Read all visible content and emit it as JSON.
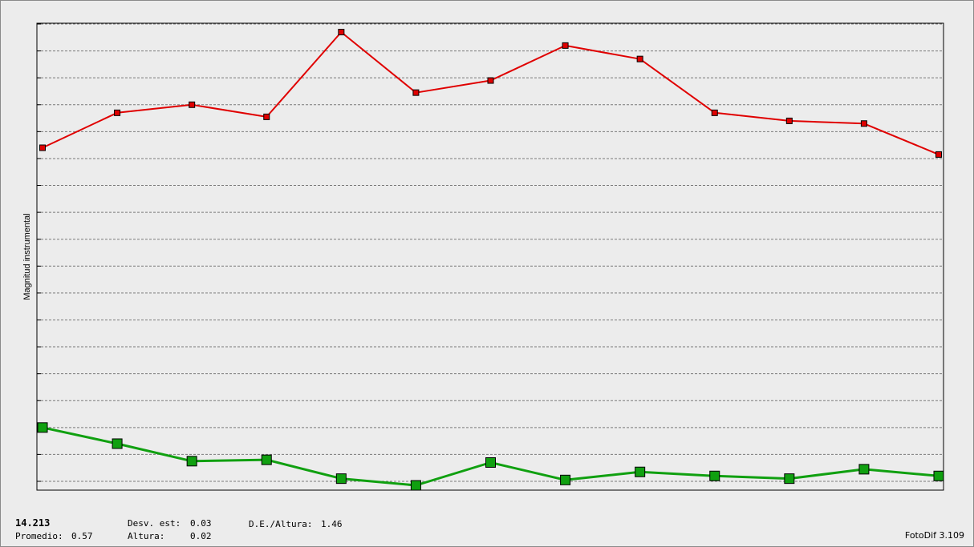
{
  "chart_data": {
    "type": "line",
    "ylabel": "Magnitud instrumental",
    "xlabel": "",
    "title": "",
    "grid": true,
    "x": [
      1,
      2,
      3,
      4,
      5,
      6,
      7,
      8,
      9,
      10,
      11,
      12,
      13
    ],
    "ylim": [
      0,
      17
    ],
    "series": [
      {
        "color": "#e00000",
        "marker": "small-square",
        "values": [
          12.4,
          13.7,
          14.0,
          13.55,
          16.7,
          14.45,
          14.9,
          16.2,
          15.7,
          13.7,
          13.4,
          13.3,
          12.15
        ]
      },
      {
        "color": "#10a010",
        "marker": "large-square",
        "values": [
          2.0,
          1.4,
          0.75,
          0.8,
          0.1,
          -0.15,
          0.7,
          0.05,
          0.35,
          0.2,
          0.1,
          0.45,
          0.2
        ]
      }
    ]
  },
  "stats": {
    "main_value": "14.213",
    "std_label": "Desv. est:",
    "std_value": "0.03",
    "de_altura_label": "D.E./Altura:",
    "de_altura_value": "1.46",
    "promedio_label": "Promedio:",
    "promedio_value": "0.57",
    "altura_label": "Altura:",
    "altura_value": "0.02"
  },
  "app": {
    "version": "FotoDif 3.109"
  }
}
